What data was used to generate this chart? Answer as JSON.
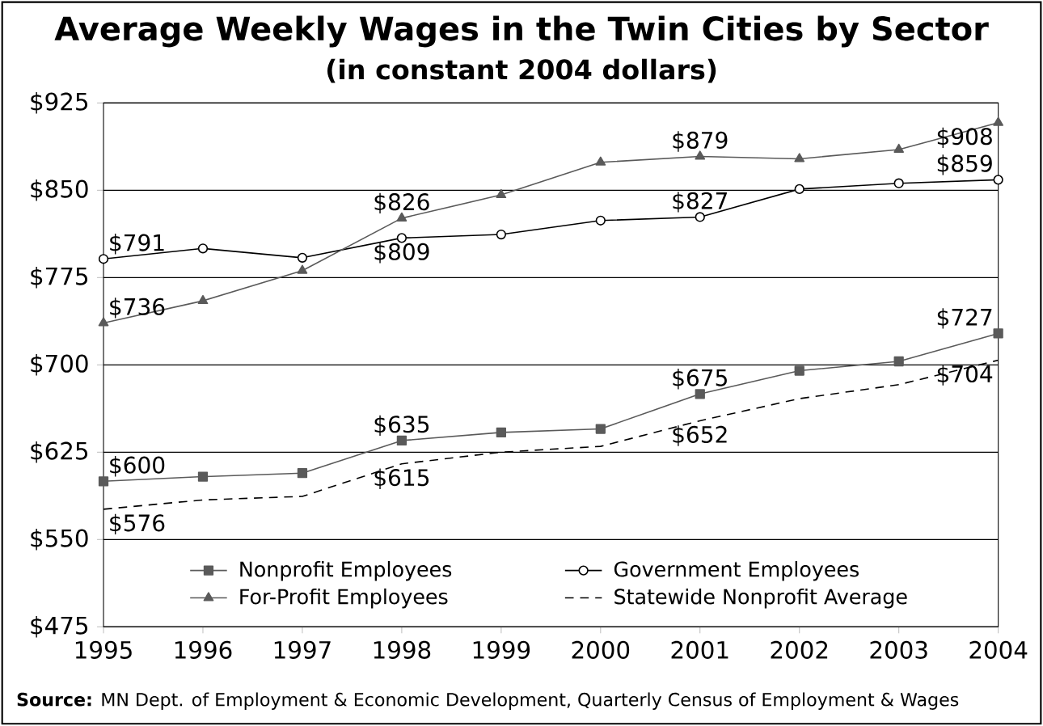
{
  "chart_data": {
    "type": "line",
    "title": "Average Weekly Wages in the Twin Cities by Sector",
    "subtitle": "(in constant 2004 dollars)",
    "categories": [
      "1995",
      "1996",
      "1997",
      "1998",
      "1999",
      "2000",
      "2001",
      "2002",
      "2003",
      "2004"
    ],
    "series": [
      {
        "name": "Nonprofit Employees",
        "color": "#5a5a5a",
        "marker": "square",
        "line_style": "solid",
        "values": [
          600,
          604,
          607,
          635,
          642,
          645,
          675,
          695,
          703,
          727
        ],
        "value_labels": [
          "$600",
          null,
          null,
          "$635",
          null,
          null,
          "$675",
          null,
          null,
          "$727"
        ]
      },
      {
        "name": "Government Employees",
        "color": "#000000",
        "marker": "circle",
        "line_style": "solid",
        "values": [
          791,
          800,
          792,
          809,
          812,
          824,
          827,
          851,
          856,
          859
        ],
        "value_labels": [
          "$791",
          null,
          null,
          "$809",
          null,
          null,
          "$827",
          null,
          null,
          "$859"
        ]
      },
      {
        "name": "For-Profit Employees",
        "color": "#5a5a5a",
        "marker": "triangle",
        "line_style": "solid",
        "values": [
          736,
          755,
          781,
          826,
          846,
          874,
          879,
          877,
          885,
          908
        ],
        "value_labels": [
          "$736",
          null,
          null,
          "$826",
          null,
          null,
          "$879",
          null,
          null,
          "$908"
        ]
      },
      {
        "name": "Statewide Nonprofit Average",
        "color": "#000000",
        "marker": "none",
        "line_style": "dashed",
        "values": [
          576,
          584,
          587,
          615,
          625,
          630,
          652,
          671,
          683,
          704
        ],
        "value_labels": [
          "$576",
          null,
          null,
          "$615",
          null,
          null,
          "$652",
          null,
          null,
          "$704"
        ]
      }
    ],
    "ylim": [
      475,
      925
    ],
    "yticks": [
      {
        "value": 475,
        "label": "$475"
      },
      {
        "value": 550,
        "label": "$550"
      },
      {
        "value": 625,
        "label": "$625"
      },
      {
        "value": 700,
        "label": "$700"
      },
      {
        "value": 775,
        "label": "$775"
      },
      {
        "value": 850,
        "label": "$850"
      },
      {
        "value": 925,
        "label": "$925"
      }
    ],
    "grid": "y",
    "legend": "bottom",
    "annotations": [
      "**Source:** MN Dept. of Employment & Economic Development, Quarterly Census of Employment & Wages"
    ]
  }
}
